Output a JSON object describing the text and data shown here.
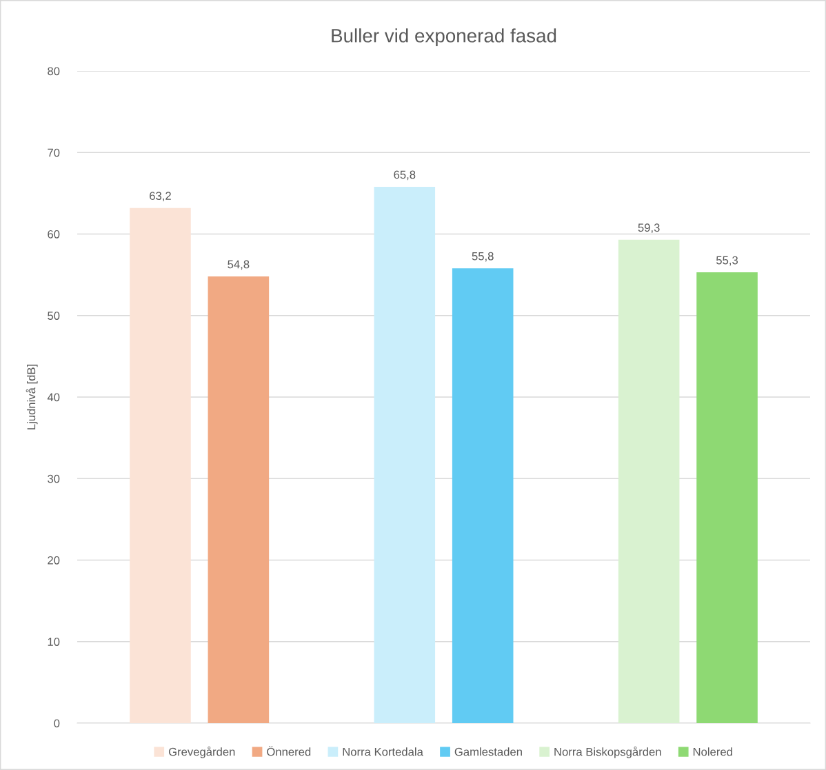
{
  "chart_data": {
    "type": "bar",
    "title": "Buller vid exponerad fasad",
    "ylabel": "Ljudnivå [dB]",
    "categories": [
      null,
      null,
      null
    ],
    "series": [
      {
        "name": "Grevegården",
        "color": "#fbe3d6",
        "values": [
          63.2,
          null,
          null
        ],
        "value_labels": [
          "63,2",
          null,
          null
        ]
      },
      {
        "name": "Önnered",
        "color": "#f1a983",
        "values": [
          54.8,
          null,
          null
        ],
        "value_labels": [
          "54,8",
          null,
          null
        ]
      },
      {
        "name": "Norra Kortedala",
        "color": "#caeefb",
        "values": [
          null,
          65.8,
          null
        ],
        "value_labels": [
          null,
          "65,8",
          null
        ]
      },
      {
        "name": "Gamlestaden",
        "color": "#61cbf3",
        "values": [
          null,
          55.8,
          null
        ],
        "value_labels": [
          null,
          "55,8",
          null
        ]
      },
      {
        "name": "Norra Biskopsgården",
        "color": "#d9f2d0",
        "values": [
          null,
          null,
          59.3
        ],
        "value_labels": [
          null,
          null,
          "59,3"
        ]
      },
      {
        "name": "Nolered",
        "color": "#8ed973",
        "values": [
          null,
          null,
          55.3
        ],
        "value_labels": [
          null,
          null,
          "55,3"
        ]
      }
    ],
    "ylim": [
      0,
      80
    ],
    "yticks": [
      0,
      10,
      20,
      30,
      40,
      50,
      60,
      70,
      80
    ],
    "grid": "y",
    "legend": "bottom"
  }
}
